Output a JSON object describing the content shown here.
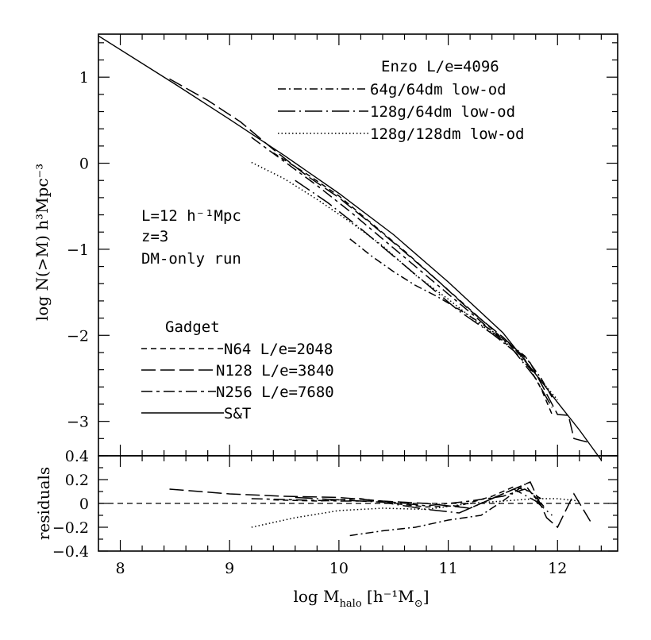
{
  "chart_data": [
    {
      "type": "line",
      "panel": "main",
      "xlabel": "log M",
      "xlabel_sub": "halo",
      "xlabel_unit": "[h⁻¹M",
      "xlabel_unit_sub": "⊙",
      "xlabel_unit_end": "]",
      "ylabel": "log N(>M) h³Mpc⁻³",
      "xlim": [
        7.8,
        12.55
      ],
      "ylim": [
        -3.4,
        1.5
      ],
      "x_ticks": [
        "8",
        "9",
        "10",
        "11",
        "12"
      ],
      "y_ticks": [
        {
          "v": 1,
          "t": "1"
        },
        {
          "v": 0,
          "t": "0"
        },
        {
          "v": -1,
          "t": "−1"
        },
        {
          "v": -2,
          "t": "−2"
        },
        {
          "v": -3,
          "t": "−3"
        }
      ],
      "annotations": [
        "L=12 h⁻¹Mpc",
        "z=3",
        "DM-only run"
      ],
      "legend_enzo_title": "Enzo L/e=4096",
      "legend_gadget_title": "Gadget",
      "series": [
        {
          "name": "S&T",
          "style": "solid",
          "group": "gadget",
          "x": [
            7.8,
            8.5,
            9.0,
            9.5,
            10.0,
            10.5,
            11.0,
            11.5,
            11.8,
            12.0,
            12.2,
            12.4
          ],
          "y": [
            1.48,
            0.92,
            0.51,
            0.09,
            -0.35,
            -0.83,
            -1.38,
            -1.97,
            -2.45,
            -2.78,
            -3.1,
            -3.45
          ]
        },
        {
          "name": "N64 L/e=2048",
          "style": "dashed",
          "group": "gadget",
          "x": [
            9.4,
            9.7,
            10.0,
            10.3,
            10.6,
            10.9,
            11.2,
            11.5,
            11.7,
            11.85,
            11.95
          ],
          "y": [
            0.12,
            -0.12,
            -0.38,
            -0.7,
            -1.02,
            -1.36,
            -1.7,
            -2.04,
            -2.28,
            -2.62,
            -2.92
          ]
        },
        {
          "name": "N128 L/e=3840",
          "style": "longdash",
          "group": "gadget",
          "x": [
            8.45,
            8.8,
            9.1,
            9.4,
            9.7,
            10.0,
            10.3,
            10.6,
            10.9,
            11.2,
            11.5,
            11.75,
            11.9,
            12.0,
            12.1,
            12.15,
            12.3
          ],
          "y": [
            0.98,
            0.73,
            0.48,
            0.16,
            -0.14,
            -0.4,
            -0.71,
            -1.03,
            -1.36,
            -1.71,
            -2.02,
            -2.32,
            -2.68,
            -2.92,
            -2.93,
            -3.2,
            -3.25
          ]
        },
        {
          "name": "N256 L/e=7680",
          "style": "dashdash",
          "group": "gadget",
          "x": [
            9.2,
            9.5,
            9.8,
            10.1,
            10.4,
            10.7,
            11.0,
            11.3,
            11.6,
            11.8
          ],
          "y": [
            0.3,
            0.02,
            -0.26,
            -0.56,
            -0.88,
            -1.2,
            -1.52,
            -1.84,
            -2.18,
            -2.46
          ]
        },
        {
          "name": "64g/64dm low-od",
          "style": "dashdot",
          "group": "enzo",
          "x": [
            10.1,
            10.3,
            10.5,
            10.7,
            10.9,
            11.1,
            11.3,
            11.5,
            11.7,
            11.85,
            11.95
          ],
          "y": [
            -0.88,
            -1.08,
            -1.26,
            -1.42,
            -1.55,
            -1.7,
            -1.86,
            -2.04,
            -2.24,
            -2.5,
            -2.72
          ]
        },
        {
          "name": "128g/64dm low-od",
          "style": "longdashdot",
          "group": "enzo",
          "x": [
            9.6,
            9.9,
            10.2,
            10.5,
            10.8,
            11.1,
            11.4,
            11.6,
            11.8,
            11.95
          ],
          "y": [
            -0.2,
            -0.46,
            -0.76,
            -1.08,
            -1.4,
            -1.72,
            -1.98,
            -2.18,
            -2.5,
            -2.84
          ]
        },
        {
          "name": "128g/128dm low-od",
          "style": "dotted",
          "group": "enzo",
          "x": [
            9.2,
            9.5,
            9.8,
            10.1,
            10.4,
            10.7,
            11.0,
            11.3,
            11.6,
            11.8,
            12.0
          ],
          "y": [
            0.01,
            -0.18,
            -0.42,
            -0.68,
            -0.96,
            -1.3,
            -1.58,
            -1.88,
            -2.15,
            -2.45,
            -2.75
          ]
        }
      ]
    },
    {
      "type": "line",
      "panel": "residuals",
      "ylabel": "residuals",
      "xlim": [
        7.8,
        12.55
      ],
      "ylim": [
        -0.4,
        0.4
      ],
      "y_ticks": [
        {
          "v": 0.4,
          "t": "0.4"
        },
        {
          "v": 0.2,
          "t": "0.2"
        },
        {
          "v": 0,
          "t": "0"
        },
        {
          "v": -0.2,
          "t": "−0.2"
        },
        {
          "v": -0.4,
          "t": "−0.4"
        }
      ],
      "zero_line": true,
      "series": [
        {
          "style": "dashed",
          "x": [
            9.4,
            9.8,
            10.2,
            10.5,
            10.8,
            11.1,
            11.4,
            11.6,
            11.75,
            11.9
          ],
          "y": [
            0.03,
            0.02,
            0.04,
            0.0,
            -0.03,
            -0.02,
            0.06,
            0.14,
            0.1,
            -0.05
          ]
        },
        {
          "style": "longdash",
          "x": [
            8.45,
            9.0,
            9.5,
            10.0,
            10.4,
            10.8,
            11.2,
            11.5,
            11.75,
            11.9,
            12.0,
            12.15,
            12.3
          ],
          "y": [
            0.12,
            0.08,
            0.06,
            0.05,
            0.02,
            0.0,
            -0.04,
            0.08,
            0.18,
            -0.12,
            -0.2,
            0.08,
            -0.15
          ]
        },
        {
          "style": "dashdash",
          "x": [
            9.2,
            9.6,
            10.0,
            10.4,
            10.8,
            11.2,
            11.5,
            11.7,
            11.85
          ],
          "y": [
            0.04,
            0.03,
            0.02,
            0.02,
            -0.02,
            0.02,
            0.06,
            0.12,
            0.04
          ]
        },
        {
          "style": "dashdot",
          "x": [
            10.1,
            10.4,
            10.7,
            11.0,
            11.3,
            11.5,
            11.7,
            11.85
          ],
          "y": [
            -0.27,
            -0.23,
            -0.2,
            -0.14,
            -0.1,
            0.02,
            0.16,
            -0.02
          ]
        },
        {
          "style": "longdashdot",
          "x": [
            9.6,
            10.0,
            10.4,
            10.8,
            11.1,
            11.4,
            11.6,
            11.8,
            11.95
          ],
          "y": [
            0.05,
            0.03,
            0.01,
            -0.05,
            -0.08,
            0.04,
            0.12,
            0.02,
            -0.1
          ]
        },
        {
          "style": "dotted",
          "x": [
            9.2,
            9.6,
            10.0,
            10.4,
            10.8,
            11.2,
            11.5,
            11.8,
            12.0,
            12.2
          ],
          "y": [
            -0.2,
            -0.12,
            -0.06,
            -0.04,
            -0.05,
            0.0,
            0.02,
            0.04,
            0.04,
            0.02
          ]
        }
      ]
    }
  ]
}
